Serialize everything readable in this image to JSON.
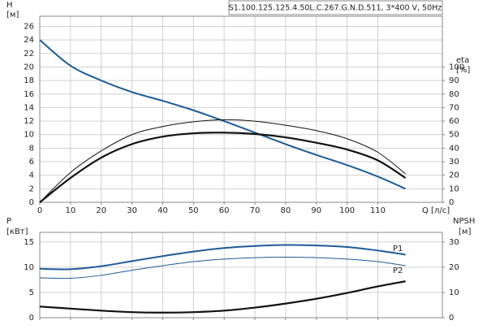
{
  "chart_data": [
    {
      "type": "line",
      "title": "S1.100.125.125.4.50L.C.267.G.N.D.511, 3*400 V, 50Hz",
      "ylabel": "H",
      "ylabel_unit": "[м]",
      "y2label": "eta",
      "y2label_unit": "[%]",
      "xlabel": "Q [л/с]",
      "xlim": [
        0,
        131
      ],
      "xticks": [
        0,
        10,
        20,
        30,
        40,
        50,
        60,
        70,
        80,
        90,
        100,
        110
      ],
      "ylim": [
        0,
        27.5
      ],
      "yticks": [
        0,
        2,
        4,
        6,
        8,
        10,
        12,
        14,
        16,
        18,
        20,
        22,
        24,
        26
      ],
      "y2lim": [
        0,
        137.5
      ],
      "y2ticks": [
        0,
        10,
        20,
        30,
        40,
        50,
        60,
        70,
        80,
        90,
        100
      ],
      "grid": true,
      "x": [
        0,
        10,
        20,
        30,
        40,
        50,
        60,
        70,
        80,
        90,
        100,
        110,
        119
      ],
      "series": [
        {
          "color": "#1f5a96",
          "width": 2,
          "values": [
            24,
            20.2,
            18,
            16.3,
            15,
            13.6,
            12,
            10.3,
            8.6,
            7,
            5.5,
            3.8,
            2
          ]
        },
        {
          "color": "#111111",
          "width": 1,
          "axis": "y2",
          "values": [
            0,
            22,
            38,
            50,
            56,
            59.5,
            61,
            60,
            57,
            53,
            47,
            37,
            21
          ]
        },
        {
          "color": "#111111",
          "width": 2.2,
          "axis": "y2",
          "values": [
            0,
            18,
            33,
            43,
            48.5,
            51,
            51.5,
            50.5,
            48,
            44,
            39,
            31,
            18
          ]
        }
      ]
    },
    {
      "type": "line",
      "ylabel": "P",
      "ylabel_unit": "[кВт]",
      "y2label": "NPSH",
      "y2label_unit": "[м]",
      "xlim": [
        0,
        131
      ],
      "ylim": [
        0,
        16.9
      ],
      "yticks": [
        0,
        5,
        10,
        15
      ],
      "y2lim": [
        0,
        33.8
      ],
      "y2ticks": [
        0,
        10,
        20,
        30
      ],
      "grid": true,
      "x": [
        0,
        10,
        20,
        30,
        40,
        50,
        60,
        70,
        80,
        90,
        100,
        110,
        119
      ],
      "series": [
        {
          "name": "P1",
          "color": "#1f5a96",
          "width": 2,
          "values": [
            9.7,
            9.6,
            10.2,
            11.2,
            12.2,
            13.1,
            13.8,
            14.2,
            14.4,
            14.3,
            14,
            13.3,
            12.5
          ]
        },
        {
          "name": "P2",
          "color": "#1f5a96",
          "width": 1,
          "values": [
            7.9,
            7.8,
            8.4,
            9.4,
            10.3,
            11.1,
            11.6,
            11.9,
            12,
            11.9,
            11.6,
            11.1,
            10.3
          ]
        },
        {
          "color": "#111111",
          "width": 2.2,
          "axis": "y2",
          "values": [
            4.4,
            3.6,
            2.8,
            2.2,
            2,
            2.2,
            2.8,
            4,
            5.6,
            7.5,
            9.8,
            12.4,
            14.4
          ]
        }
      ]
    }
  ]
}
